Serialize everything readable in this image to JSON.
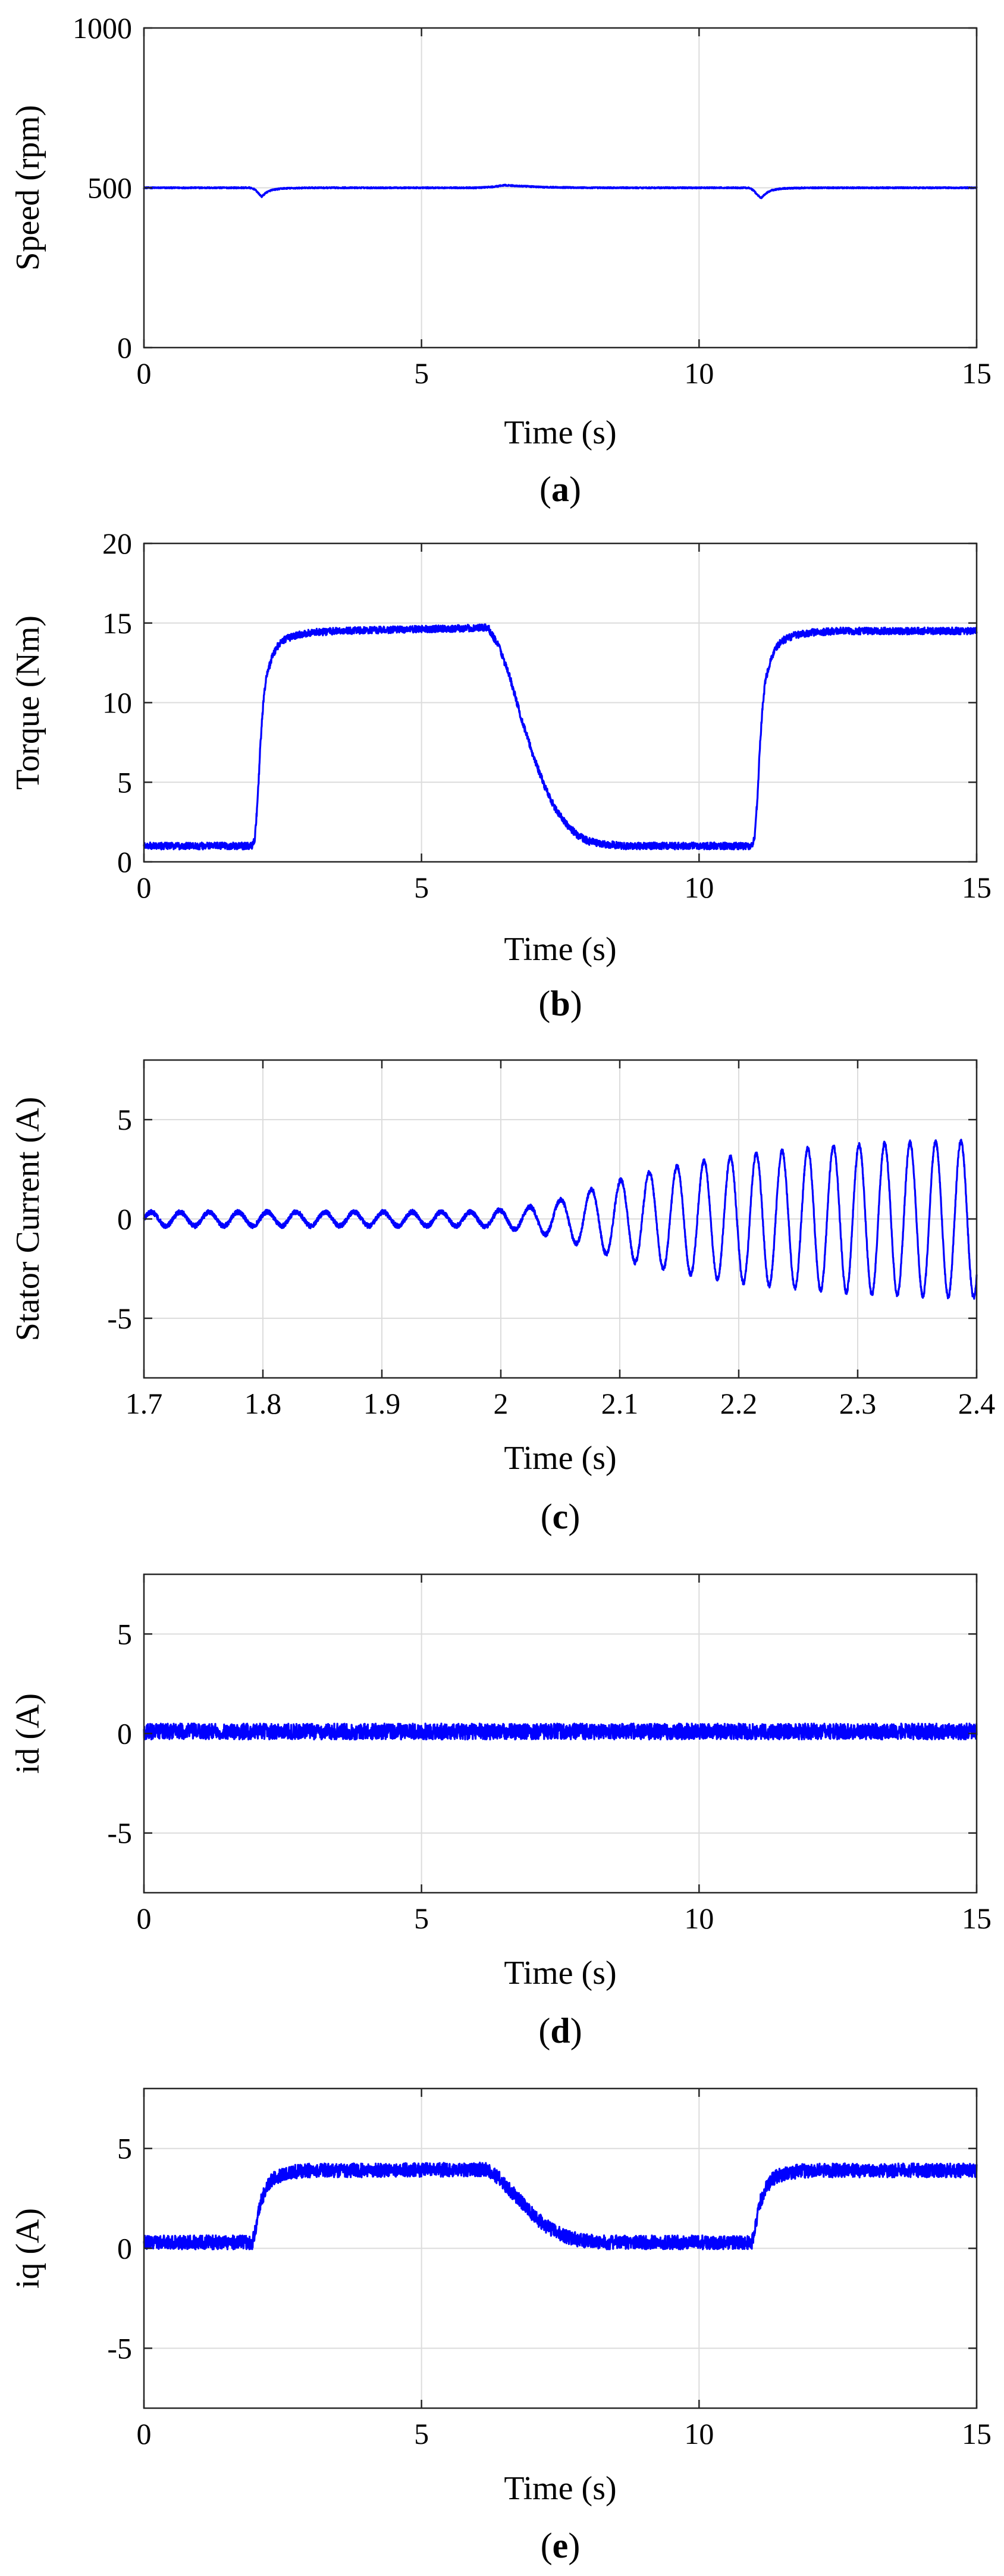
{
  "figure": {
    "colors": {
      "series": "#0000ff",
      "axes": "#262626",
      "grid": "#dcdcdc",
      "background": "#ffffff"
    }
  },
  "chart_data": [
    {
      "id": "a",
      "type": "line",
      "caption": {
        "open": "(",
        "letter": "a",
        "close": ")"
      },
      "title": "",
      "xlabel": "Time (s)",
      "ylabel": "Speed (rpm)",
      "xlim": [
        0,
        15
      ],
      "ylim": [
        0,
        1000
      ],
      "xticks": [
        0,
        5,
        10,
        15
      ],
      "xtick_labels": [
        "0",
        "5",
        "10",
        "15"
      ],
      "yticks": [
        0,
        500,
        1000
      ],
      "ytick_labels": [
        "0",
        "500",
        "1000"
      ],
      "grid": true,
      "series": [
        {
          "name": "Speed",
          "x": [
            0,
            1.9,
            2.0,
            2.05,
            2.12,
            2.2,
            2.3,
            2.5,
            3.0,
            5.0,
            6.0,
            6.3,
            6.5,
            6.8,
            7.2,
            8.0,
            10.0,
            10.9,
            10.98,
            11.05,
            11.12,
            11.2,
            11.3,
            11.5,
            12.0,
            15.0
          ],
          "y": [
            500,
            500,
            495,
            485,
            472,
            485,
            493,
            498,
            500,
            500,
            500,
            503,
            508,
            505,
            502,
            500,
            500,
            500,
            492,
            478,
            468,
            482,
            492,
            498,
            500,
            500
          ],
          "noise_amplitude": 2
        }
      ]
    },
    {
      "id": "b",
      "type": "line",
      "caption": {
        "open": "(",
        "letter": "b",
        "close": ")"
      },
      "title": "",
      "xlabel": "Time (s)",
      "ylabel": "Torque (Nm)",
      "xlim": [
        0,
        15
      ],
      "ylim": [
        0,
        20
      ],
      "xticks": [
        0,
        5,
        10,
        15
      ],
      "xtick_labels": [
        "0",
        "5",
        "10",
        "15"
      ],
      "yticks": [
        0,
        5,
        10,
        15,
        20
      ],
      "ytick_labels": [
        "0",
        "5",
        "10",
        "15",
        "20"
      ],
      "grid": true,
      "series": [
        {
          "name": "Torque",
          "x": [
            0,
            1.95,
            2.0,
            2.05,
            2.1,
            2.15,
            2.2,
            2.3,
            2.4,
            2.5,
            2.7,
            3.0,
            3.5,
            6.2,
            6.4,
            6.6,
            6.8,
            7.0,
            7.2,
            7.4,
            7.6,
            7.8,
            8.0,
            8.3,
            8.7,
            10.95,
            11.0,
            11.05,
            11.1,
            11.15,
            11.2,
            11.3,
            11.4,
            11.5,
            11.7,
            12.0,
            12.5,
            15.0
          ],
          "y": [
            1.0,
            1.0,
            1.5,
            4.0,
            7.5,
            10.0,
            11.5,
            12.8,
            13.5,
            13.9,
            14.2,
            14.4,
            14.5,
            14.7,
            13.5,
            11.5,
            9.0,
            6.8,
            4.9,
            3.4,
            2.4,
            1.7,
            1.3,
            1.1,
            1.0,
            1.0,
            1.5,
            4.0,
            7.5,
            10.0,
            11.5,
            12.8,
            13.5,
            13.9,
            14.2,
            14.4,
            14.5,
            14.5
          ],
          "noise_amplitude": 0.22
        }
      ]
    },
    {
      "id": "c",
      "type": "line",
      "caption": {
        "open": "(",
        "letter": "c",
        "close": ")"
      },
      "title": "",
      "xlabel": "Time (s)",
      "ylabel": "Stator Current (A)",
      "xlim": [
        1.7,
        2.4
      ],
      "ylim": [
        -8,
        8
      ],
      "xticks": [
        1.7,
        1.8,
        1.9,
        2.0,
        2.1,
        2.2,
        2.3,
        2.4
      ],
      "xtick_labels": [
        "1.7",
        "1.8",
        "1.9",
        "2",
        "2.1",
        "2.2",
        "2.3",
        "2.4"
      ],
      "yticks": [
        -5,
        0,
        5
      ],
      "ytick_labels": [
        "-5",
        "0",
        "5"
      ],
      "grid": true,
      "series": [
        {
          "name": "Stator Current",
          "amplitude_envelope": {
            "t": [
              1.7,
              1.98,
              2.02,
              2.05,
              2.08,
              2.12,
              2.16,
              2.2,
              2.25,
              2.3,
              2.4
            ],
            "amp": [
              0.35,
              0.35,
              0.55,
              0.95,
              1.6,
              2.3,
              2.8,
              3.2,
              3.5,
              3.75,
              3.95
            ]
          },
          "frequency_envelope": {
            "t": [
              1.7,
              1.98,
              2.05,
              2.1,
              2.2,
              2.4
            ],
            "hz": [
              41,
              41,
              38,
              41,
              46,
              47
            ]
          },
          "noise_amplitude": 0.12
        }
      ]
    },
    {
      "id": "d",
      "type": "line",
      "caption": {
        "open": "(",
        "letter": "d",
        "close": ")"
      },
      "title": "",
      "xlabel": "Time (s)",
      "ylabel": "id (A)",
      "xlim": [
        0,
        15
      ],
      "ylim": [
        -8,
        8
      ],
      "xticks": [
        0,
        5,
        10,
        15
      ],
      "xtick_labels": [
        "0",
        "5",
        "10",
        "15"
      ],
      "yticks": [
        -5,
        0,
        5
      ],
      "ytick_labels": [
        "-5",
        "0",
        "5"
      ],
      "grid": true,
      "series": [
        {
          "name": "id",
          "x": [
            0,
            15
          ],
          "y": [
            0.1,
            0.1
          ],
          "noise_amplitude": 0.4
        }
      ]
    },
    {
      "id": "e",
      "type": "line",
      "caption": {
        "open": "(",
        "letter": "e",
        "close": ")"
      },
      "title": "",
      "xlabel": "Time (s)",
      "ylabel": "iq (A)",
      "xlim": [
        0,
        15
      ],
      "ylim": [
        -8,
        8
      ],
      "xticks": [
        0,
        5,
        10,
        15
      ],
      "xtick_labels": [
        "0",
        "5",
        "10",
        "15"
      ],
      "yticks": [
        -5,
        0,
        5
      ],
      "ytick_labels": [
        "-5",
        "0",
        "5"
      ],
      "grid": true,
      "series": [
        {
          "name": "iq",
          "x": [
            0,
            1.95,
            2.0,
            2.05,
            2.1,
            2.2,
            2.3,
            2.4,
            2.6,
            3.0,
            3.5,
            6.2,
            6.4,
            6.6,
            6.8,
            7.0,
            7.2,
            7.4,
            7.6,
            7.8,
            8.0,
            8.3,
            8.7,
            10.95,
            11.0,
            11.05,
            11.1,
            11.2,
            11.3,
            11.4,
            11.6,
            12.0,
            12.5,
            15.0
          ],
          "y": [
            0.3,
            0.3,
            0.8,
            1.6,
            2.3,
            3.0,
            3.4,
            3.6,
            3.8,
            3.9,
            3.9,
            3.95,
            3.5,
            2.9,
            2.3,
            1.7,
            1.2,
            0.85,
            0.6,
            0.45,
            0.35,
            0.3,
            0.3,
            0.3,
            0.8,
            1.6,
            2.3,
            3.0,
            3.4,
            3.6,
            3.8,
            3.9,
            3.9,
            3.9
          ],
          "noise_amplitude": 0.35
        }
      ]
    }
  ]
}
